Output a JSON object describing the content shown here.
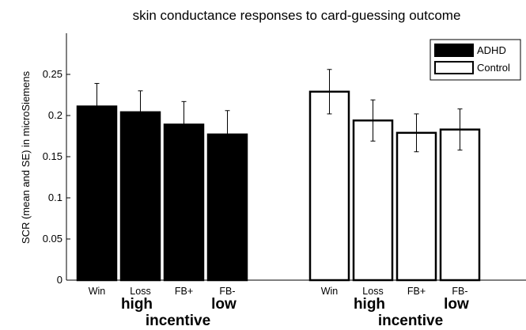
{
  "chart_data": {
    "type": "bar",
    "title": "skin conductance responses to card-guessing outcome",
    "ylabel": "SCR (mean and SE) in microSiemens",
    "ylim": [
      0,
      0.3
    ],
    "yticks": [
      0,
      0.05,
      0.1,
      0.15,
      0.2,
      0.25
    ],
    "ytick_labels": [
      "0",
      "0.05",
      "0.1",
      "0.15",
      "0.2",
      "0.25"
    ],
    "categories": [
      "Win",
      "Loss",
      "FB+",
      "FB-"
    ],
    "group_labels": {
      "high": "high",
      "low": "low",
      "incentive": "incentive"
    },
    "legend": {
      "placement": "top-right"
    },
    "series": [
      {
        "name": "ADHD",
        "color": "#000000",
        "values": [
          0.211,
          0.204,
          0.189,
          0.177
        ],
        "errors": [
          0.028,
          0.026,
          0.028,
          0.029
        ]
      },
      {
        "name": "Control",
        "color": "#ffffff",
        "values": [
          0.229,
          0.194,
          0.179,
          0.183
        ],
        "errors": [
          0.027,
          0.025,
          0.023,
          0.025
        ]
      }
    ],
    "grid": false
  }
}
